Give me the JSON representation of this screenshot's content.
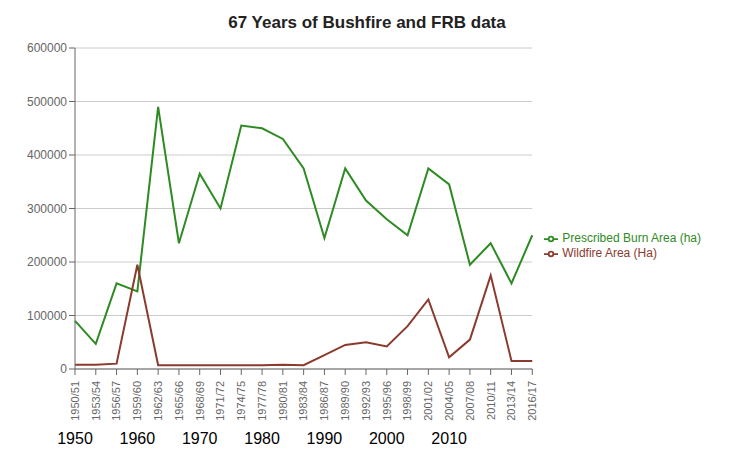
{
  "chart_data": {
    "type": "line",
    "title": "67 Years of Bushfire and FRB data",
    "categories": [
      "1950/51",
      "1953/54",
      "1956/57",
      "1959/60",
      "1962/63",
      "1965/66",
      "1968/69",
      "1971/72",
      "1974/75",
      "1977/78",
      "1980/81",
      "1983/84",
      "1986/87",
      "1989/90",
      "1992/93",
      "1995/96",
      "1998/99",
      "2001/02",
      "2004/05",
      "2007/08",
      "2010/11",
      "2013/14",
      "2016/17"
    ],
    "series": [
      {
        "name": "Prescribed Burn Area (ha)",
        "color": "#2e8b24",
        "values": [
          90000,
          47000,
          160000,
          145000,
          490000,
          235000,
          365000,
          300000,
          455000,
          450000,
          430000,
          375000,
          245000,
          375000,
          315000,
          280000,
          250000,
          375000,
          345000,
          195000,
          235000,
          160000,
          250000
        ]
      },
      {
        "name": "Wildfire Area (Ha)",
        "color": "#8b3a2e",
        "values": [
          8000,
          8000,
          10000,
          195000,
          7000,
          7000,
          7000,
          7000,
          7000,
          7000,
          8000,
          7000,
          26000,
          45000,
          50000,
          42000,
          80000,
          130000,
          22000,
          55000,
          175000,
          15000,
          15000
        ]
      }
    ],
    "annotations": [
      {
        "text": "1950",
        "x": "1950/51"
      },
      {
        "text": "1960",
        "x": "1959/60"
      },
      {
        "text": "1970",
        "x": "1968/69"
      },
      {
        "text": "1980",
        "x": "1977/78"
      },
      {
        "text": "1990",
        "x": "1986/87"
      },
      {
        "text": "2000",
        "x": "1995/96"
      },
      {
        "text": "2010",
        "x": "2004/05"
      }
    ],
    "ylim": [
      0,
      600000
    ],
    "yticks": [
      0,
      100000,
      200000,
      300000,
      400000,
      500000,
      600000
    ],
    "grid": true,
    "legend": "right"
  }
}
